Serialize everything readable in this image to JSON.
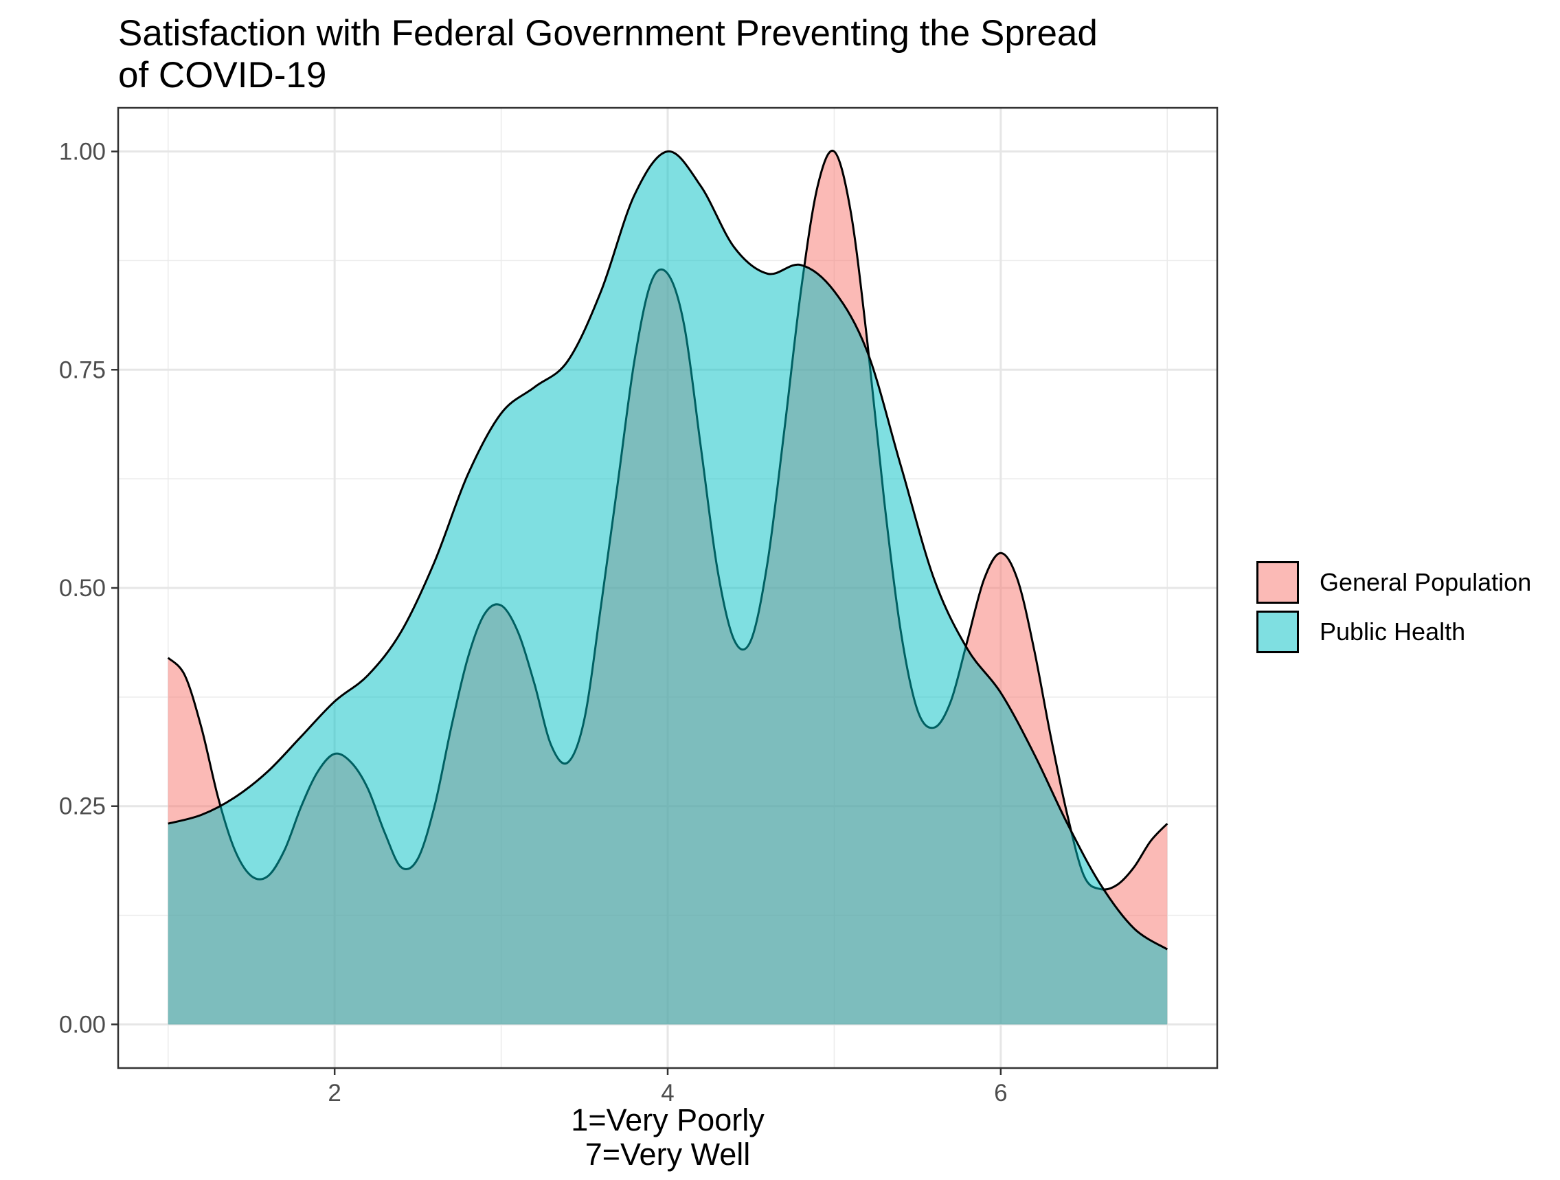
{
  "chart_data": {
    "type": "area",
    "title": "Satisfaction with Federal Government Preventing the Spread of COVID-19",
    "title_lines": [
      "Satisfaction with Federal Government Preventing the Spread",
      "of COVID-19"
    ],
    "xlabel_lines": [
      "1=Very Poorly",
      "7=Very Well"
    ],
    "ylabel": "",
    "xlim": [
      0.7,
      7.3
    ],
    "ylim": [
      -0.05,
      1.05
    ],
    "xticks": [
      2,
      4,
      6
    ],
    "xtick_labels": [
      "2",
      "4",
      "6"
    ],
    "yticks": [
      0,
      0.25,
      0.5,
      0.75,
      1.0
    ],
    "ytick_labels": [
      "0.00",
      "0.25",
      "0.50",
      "0.75",
      "1.00"
    ],
    "grid": true,
    "legend_position": "right",
    "series": [
      {
        "name": "General Population",
        "color": "#F8766D",
        "points": [
          [
            1.0,
            0.42
          ],
          [
            1.1,
            0.4
          ],
          [
            1.2,
            0.34
          ],
          [
            1.3,
            0.26
          ],
          [
            1.4,
            0.2
          ],
          [
            1.5,
            0.17
          ],
          [
            1.6,
            0.17
          ],
          [
            1.7,
            0.2
          ],
          [
            1.8,
            0.25
          ],
          [
            1.9,
            0.29
          ],
          [
            2.0,
            0.31
          ],
          [
            2.1,
            0.3
          ],
          [
            2.2,
            0.27
          ],
          [
            2.3,
            0.22
          ],
          [
            2.4,
            0.18
          ],
          [
            2.5,
            0.19
          ],
          [
            2.6,
            0.25
          ],
          [
            2.7,
            0.34
          ],
          [
            2.8,
            0.42
          ],
          [
            2.9,
            0.47
          ],
          [
            3.0,
            0.48
          ],
          [
            3.1,
            0.45
          ],
          [
            3.2,
            0.39
          ],
          [
            3.3,
            0.32
          ],
          [
            3.4,
            0.3
          ],
          [
            3.5,
            0.35
          ],
          [
            3.6,
            0.48
          ],
          [
            3.7,
            0.62
          ],
          [
            3.8,
            0.76
          ],
          [
            3.9,
            0.85
          ],
          [
            4.0,
            0.86
          ],
          [
            4.1,
            0.8
          ],
          [
            4.2,
            0.66
          ],
          [
            4.3,
            0.52
          ],
          [
            4.4,
            0.44
          ],
          [
            4.5,
            0.44
          ],
          [
            4.6,
            0.53
          ],
          [
            4.7,
            0.68
          ],
          [
            4.8,
            0.84
          ],
          [
            4.9,
            0.96
          ],
          [
            5.0,
            1.0
          ],
          [
            5.1,
            0.93
          ],
          [
            5.2,
            0.78
          ],
          [
            5.3,
            0.6
          ],
          [
            5.4,
            0.45
          ],
          [
            5.5,
            0.36
          ],
          [
            5.6,
            0.34
          ],
          [
            5.7,
            0.37
          ],
          [
            5.8,
            0.44
          ],
          [
            5.9,
            0.51
          ],
          [
            6.0,
            0.54
          ],
          [
            6.1,
            0.51
          ],
          [
            6.2,
            0.43
          ],
          [
            6.3,
            0.33
          ],
          [
            6.4,
            0.24
          ],
          [
            6.5,
            0.17
          ],
          [
            6.6,
            0.155
          ],
          [
            6.7,
            0.16
          ],
          [
            6.8,
            0.18
          ],
          [
            6.9,
            0.21
          ],
          [
            7.0,
            0.23
          ]
        ]
      },
      {
        "name": "Public Health",
        "color": "#00BFC4",
        "points": [
          [
            1.0,
            0.23
          ],
          [
            1.2,
            0.24
          ],
          [
            1.4,
            0.26
          ],
          [
            1.6,
            0.29
          ],
          [
            1.8,
            0.33
          ],
          [
            2.0,
            0.37
          ],
          [
            2.2,
            0.4
          ],
          [
            2.4,
            0.45
          ],
          [
            2.6,
            0.53
          ],
          [
            2.8,
            0.63
          ],
          [
            3.0,
            0.7
          ],
          [
            3.2,
            0.73
          ],
          [
            3.4,
            0.76
          ],
          [
            3.6,
            0.84
          ],
          [
            3.8,
            0.95
          ],
          [
            4.0,
            1.0
          ],
          [
            4.2,
            0.96
          ],
          [
            4.4,
            0.89
          ],
          [
            4.6,
            0.86
          ],
          [
            4.8,
            0.87
          ],
          [
            5.0,
            0.84
          ],
          [
            5.2,
            0.77
          ],
          [
            5.4,
            0.64
          ],
          [
            5.6,
            0.51
          ],
          [
            5.8,
            0.43
          ],
          [
            6.0,
            0.38
          ],
          [
            6.2,
            0.31
          ],
          [
            6.4,
            0.23
          ],
          [
            6.6,
            0.16
          ],
          [
            6.8,
            0.11
          ],
          [
            7.0,
            0.086
          ]
        ]
      }
    ]
  }
}
